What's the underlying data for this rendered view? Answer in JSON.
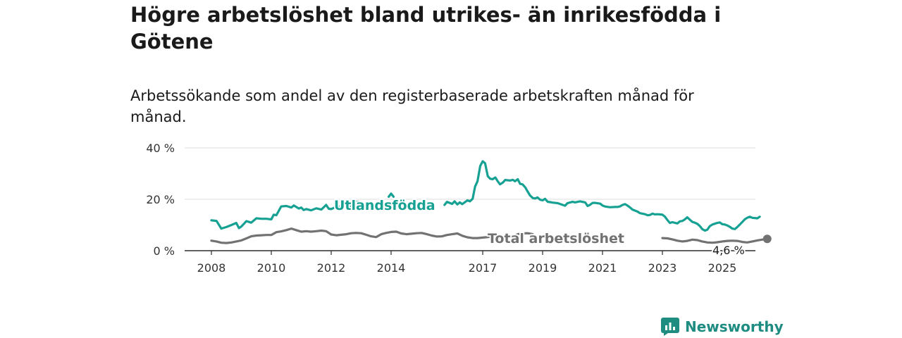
{
  "title": "Högre arbetslöshet bland utrikes- än inrikesfödda i Götene",
  "subtitle": "Arbetssökande som andel av den registerbaserade arbetskraften månad för månad.",
  "brand": {
    "name": "Newsworthy",
    "icon": "newsworthy-logo-icon",
    "color": "#1e8c80"
  },
  "chart_data": {
    "type": "line",
    "title": "Högre arbetslöshet bland utrikes- än inrikesfödda i Götene",
    "subtitle": "Arbetssökande som andel av den registerbaserade arbetskraften månad för månad.",
    "xlabel": "",
    "ylabel": "",
    "x_ticks": [
      "2008",
      "2010",
      "2012",
      "2014",
      "2017",
      "2019",
      "2021",
      "2023",
      "2025"
    ],
    "x_tick_years": [
      2008,
      2010,
      2012,
      2014,
      2017,
      2019,
      2021,
      2023,
      2025
    ],
    "y_ticks": [
      "0 %",
      "20 %",
      "40 %"
    ],
    "y_tick_values": [
      0,
      20,
      40
    ],
    "xlim": [
      2007.67,
      2025.75
    ],
    "ylim": [
      0,
      40
    ],
    "grid": "horizontal",
    "legend": "inline labels",
    "series": [
      {
        "name": "Utlandsfödda",
        "color": "#17a193",
        "segments": [
          [
            [
              2008.0,
              11.8
            ],
            [
              2008.17,
              11.6
            ],
            [
              2008.33,
              8.6
            ],
            [
              2008.5,
              9.2
            ],
            [
              2008.67,
              10.0
            ],
            [
              2008.83,
              10.8
            ],
            [
              2008.92,
              8.8
            ],
            [
              2009.0,
              9.4
            ],
            [
              2009.17,
              11.5
            ],
            [
              2009.33,
              10.9
            ],
            [
              2009.5,
              12.6
            ],
            [
              2009.67,
              12.4
            ],
            [
              2009.83,
              12.4
            ],
            [
              2010.0,
              12.2
            ],
            [
              2010.08,
              14.0
            ],
            [
              2010.17,
              13.8
            ],
            [
              2010.33,
              17.2
            ],
            [
              2010.5,
              17.4
            ],
            [
              2010.67,
              16.8
            ],
            [
              2010.75,
              17.6
            ],
            [
              2010.92,
              16.4
            ],
            [
              2011.0,
              16.8
            ],
            [
              2011.08,
              15.8
            ],
            [
              2011.17,
              16.2
            ],
            [
              2011.33,
              15.7
            ],
            [
              2011.5,
              16.5
            ],
            [
              2011.67,
              16.0
            ],
            [
              2011.83,
              17.8
            ],
            [
              2011.92,
              16.3
            ],
            [
              2012.0,
              16.2
            ],
            [
              2012.17,
              17.1
            ],
            [
              2012.33,
              17.2
            ],
            [
              2012.5,
              17.6
            ],
            [
              2012.67,
              17.3
            ]
          ],
          [
            [
              2012.75,
              18.9
            ],
            [
              2012.92,
              19.0
            ]
          ],
          [
            [
              2013.92,
              21.0
            ],
            [
              2014.0,
              22.2
            ],
            [
              2014.08,
              21.0
            ]
          ],
          [
            [
              2015.75,
              17.8
            ],
            [
              2015.83,
              19.0
            ],
            [
              2016.0,
              18.2
            ],
            [
              2016.08,
              19.2
            ],
            [
              2016.17,
              18.0
            ],
            [
              2016.25,
              18.8
            ],
            [
              2016.33,
              18.1
            ],
            [
              2016.5,
              19.6
            ],
            [
              2016.58,
              19.2
            ],
            [
              2016.67,
              20.2
            ],
            [
              2016.75,
              25.0
            ],
            [
              2016.83,
              27.0
            ],
            [
              2016.92,
              33.0
            ],
            [
              2017.0,
              34.8
            ],
            [
              2017.08,
              34.0
            ],
            [
              2017.17,
              29.0
            ],
            [
              2017.25,
              28.0
            ],
            [
              2017.33,
              27.8
            ],
            [
              2017.42,
              28.5
            ],
            [
              2017.5,
              27.0
            ],
            [
              2017.58,
              25.8
            ],
            [
              2017.67,
              26.5
            ],
            [
              2017.75,
              27.5
            ],
            [
              2017.92,
              27.3
            ],
            [
              2018.0,
              27.6
            ],
            [
              2018.08,
              27.0
            ],
            [
              2018.17,
              27.8
            ],
            [
              2018.25,
              26.0
            ],
            [
              2018.33,
              25.8
            ],
            [
              2018.42,
              24.6
            ],
            [
              2018.5,
              23.0
            ],
            [
              2018.58,
              21.5
            ],
            [
              2018.67,
              20.5
            ],
            [
              2018.75,
              20.3
            ],
            [
              2018.83,
              20.7
            ],
            [
              2018.92,
              19.8
            ],
            [
              2019.0,
              19.6
            ],
            [
              2019.08,
              20.2
            ],
            [
              2019.17,
              19.0
            ],
            [
              2019.25,
              18.9
            ],
            [
              2019.33,
              18.7
            ],
            [
              2019.5,
              18.5
            ],
            [
              2019.58,
              18.2
            ],
            [
              2019.67,
              17.8
            ],
            [
              2019.75,
              17.5
            ],
            [
              2019.83,
              18.5
            ],
            [
              2020.0,
              19.0
            ],
            [
              2020.08,
              18.8
            ],
            [
              2020.25,
              19.2
            ],
            [
              2020.42,
              18.8
            ],
            [
              2020.5,
              17.4
            ],
            [
              2020.58,
              17.8
            ],
            [
              2020.67,
              18.6
            ],
            [
              2020.75,
              18.6
            ],
            [
              2020.92,
              18.3
            ],
            [
              2021.0,
              17.6
            ],
            [
              2021.08,
              17.2
            ],
            [
              2021.25,
              16.9
            ],
            [
              2021.42,
              17.0
            ],
            [
              2021.5,
              17.0
            ],
            [
              2021.58,
              17.2
            ],
            [
              2021.67,
              17.8
            ],
            [
              2021.75,
              18.1
            ],
            [
              2021.83,
              17.6
            ],
            [
              2021.92,
              16.8
            ],
            [
              2022.0,
              16.0
            ],
            [
              2022.17,
              15.2
            ],
            [
              2022.25,
              14.6
            ],
            [
              2022.42,
              14.2
            ],
            [
              2022.5,
              13.8
            ],
            [
              2022.58,
              13.9
            ],
            [
              2022.67,
              14.4
            ],
            [
              2022.75,
              14.1
            ],
            [
              2022.83,
              14.2
            ],
            [
              2022.92,
              14.1
            ],
            [
              2023.0,
              14.0
            ],
            [
              2023.08,
              13.3
            ],
            [
              2023.17,
              11.9
            ],
            [
              2023.25,
              10.8
            ],
            [
              2023.33,
              11.1
            ],
            [
              2023.5,
              10.6
            ],
            [
              2023.58,
              11.4
            ],
            [
              2023.67,
              11.6
            ],
            [
              2023.75,
              12.2
            ],
            [
              2023.83,
              13.0
            ],
            [
              2023.92,
              12.0
            ],
            [
              2024.0,
              11.2
            ],
            [
              2024.08,
              10.9
            ],
            [
              2024.17,
              10.4
            ],
            [
              2024.25,
              9.6
            ],
            [
              2024.33,
              8.4
            ],
            [
              2024.42,
              7.8
            ],
            [
              2024.5,
              8.2
            ],
            [
              2024.58,
              9.5
            ],
            [
              2024.67,
              10.2
            ],
            [
              2024.83,
              10.8
            ],
            [
              2024.92,
              11.0
            ],
            [
              2025.0,
              10.3
            ],
            [
              2025.08,
              10.2
            ],
            [
              2025.17,
              9.8
            ],
            [
              2025.25,
              9.3
            ],
            [
              2025.33,
              8.6
            ],
            [
              2025.42,
              8.4
            ],
            [
              2025.5,
              9.2
            ],
            [
              2025.58,
              10.1
            ],
            [
              2025.67,
              11.2
            ],
            [
              2025.75,
              12.2
            ],
            [
              2025.83,
              12.8
            ],
            [
              2025.92,
              13.2
            ],
            [
              2026.0,
              12.8
            ],
            [
              2026.17,
              12.6
            ],
            [
              2026.25,
              13.2
            ]
          ]
        ]
      },
      {
        "name": "Total arbetslöshet",
        "color": "#727272",
        "segments": [
          [
            [
              2008.0,
              3.9
            ],
            [
              2008.17,
              3.6
            ],
            [
              2008.33,
              3.1
            ],
            [
              2008.5,
              3.0
            ],
            [
              2008.67,
              3.2
            ],
            [
              2008.83,
              3.6
            ],
            [
              2009.0,
              4.0
            ],
            [
              2009.17,
              4.8
            ],
            [
              2009.33,
              5.6
            ],
            [
              2009.5,
              5.9
            ],
            [
              2009.67,
              6.0
            ],
            [
              2009.83,
              6.1
            ],
            [
              2010.0,
              6.1
            ],
            [
              2010.17,
              7.2
            ],
            [
              2010.33,
              7.5
            ],
            [
              2010.5,
              8.0
            ],
            [
              2010.67,
              8.6
            ],
            [
              2010.83,
              8.0
            ],
            [
              2011.0,
              7.4
            ],
            [
              2011.17,
              7.6
            ],
            [
              2011.33,
              7.4
            ],
            [
              2011.5,
              7.6
            ],
            [
              2011.67,
              7.8
            ],
            [
              2011.83,
              7.6
            ],
            [
              2012.0,
              6.3
            ],
            [
              2012.17,
              6.0
            ],
            [
              2012.33,
              6.2
            ],
            [
              2012.5,
              6.4
            ],
            [
              2012.67,
              6.8
            ],
            [
              2012.83,
              6.9
            ],
            [
              2013.0,
              6.8
            ],
            [
              2013.17,
              6.2
            ],
            [
              2013.33,
              5.6
            ],
            [
              2013.5,
              5.3
            ],
            [
              2013.67,
              6.4
            ],
            [
              2013.83,
              6.9
            ],
            [
              2014.0,
              7.3
            ],
            [
              2014.17,
              7.4
            ],
            [
              2014.33,
              6.7
            ],
            [
              2014.5,
              6.4
            ],
            [
              2014.67,
              6.6
            ],
            [
              2014.83,
              6.8
            ],
            [
              2015.0,
              6.9
            ],
            [
              2015.17,
              6.4
            ],
            [
              2015.33,
              5.9
            ],
            [
              2015.5,
              5.5
            ],
            [
              2015.67,
              5.6
            ],
            [
              2015.83,
              6.1
            ],
            [
              2016.0,
              6.4
            ],
            [
              2016.17,
              6.7
            ],
            [
              2016.33,
              5.8
            ],
            [
              2016.5,
              5.2
            ],
            [
              2016.67,
              4.9
            ],
            [
              2016.83,
              4.9
            ],
            [
              2017.0,
              5.1
            ],
            [
              2017.17,
              5.3
            ],
            [
              2017.33,
              5.5
            ],
            [
              2017.5,
              5.0
            ],
            [
              2017.67,
              4.7
            ],
            [
              2017.83,
              5.5
            ],
            [
              2018.0,
              5.6
            ],
            [
              2018.17,
              6.4
            ],
            [
              2018.33,
              6.7
            ],
            [
              2018.5,
              6.8
            ],
            [
              2018.67,
              6.4
            ]
          ],
          [
            [
              2023.0,
              4.9
            ],
            [
              2023.17,
              4.8
            ],
            [
              2023.33,
              4.4
            ],
            [
              2023.5,
              3.9
            ],
            [
              2023.67,
              3.6
            ],
            [
              2023.83,
              3.8
            ],
            [
              2024.0,
              4.3
            ],
            [
              2024.17,
              4.1
            ],
            [
              2024.33,
              3.6
            ],
            [
              2024.5,
              3.2
            ],
            [
              2024.67,
              3.1
            ],
            [
              2024.83,
              3.3
            ],
            [
              2025.0,
              3.6
            ],
            [
              2025.17,
              3.8
            ],
            [
              2025.33,
              3.9
            ],
            [
              2025.5,
              3.8
            ],
            [
              2025.67,
              3.4
            ],
            [
              2025.83,
              3.2
            ],
            [
              2026.0,
              3.6
            ],
            [
              2026.17,
              4.0
            ],
            [
              2026.33,
              4.3
            ],
            [
              2026.5,
              4.6
            ]
          ]
        ],
        "last_value": 4.6,
        "last_value_label": "4,6 %"
      }
    ]
  }
}
